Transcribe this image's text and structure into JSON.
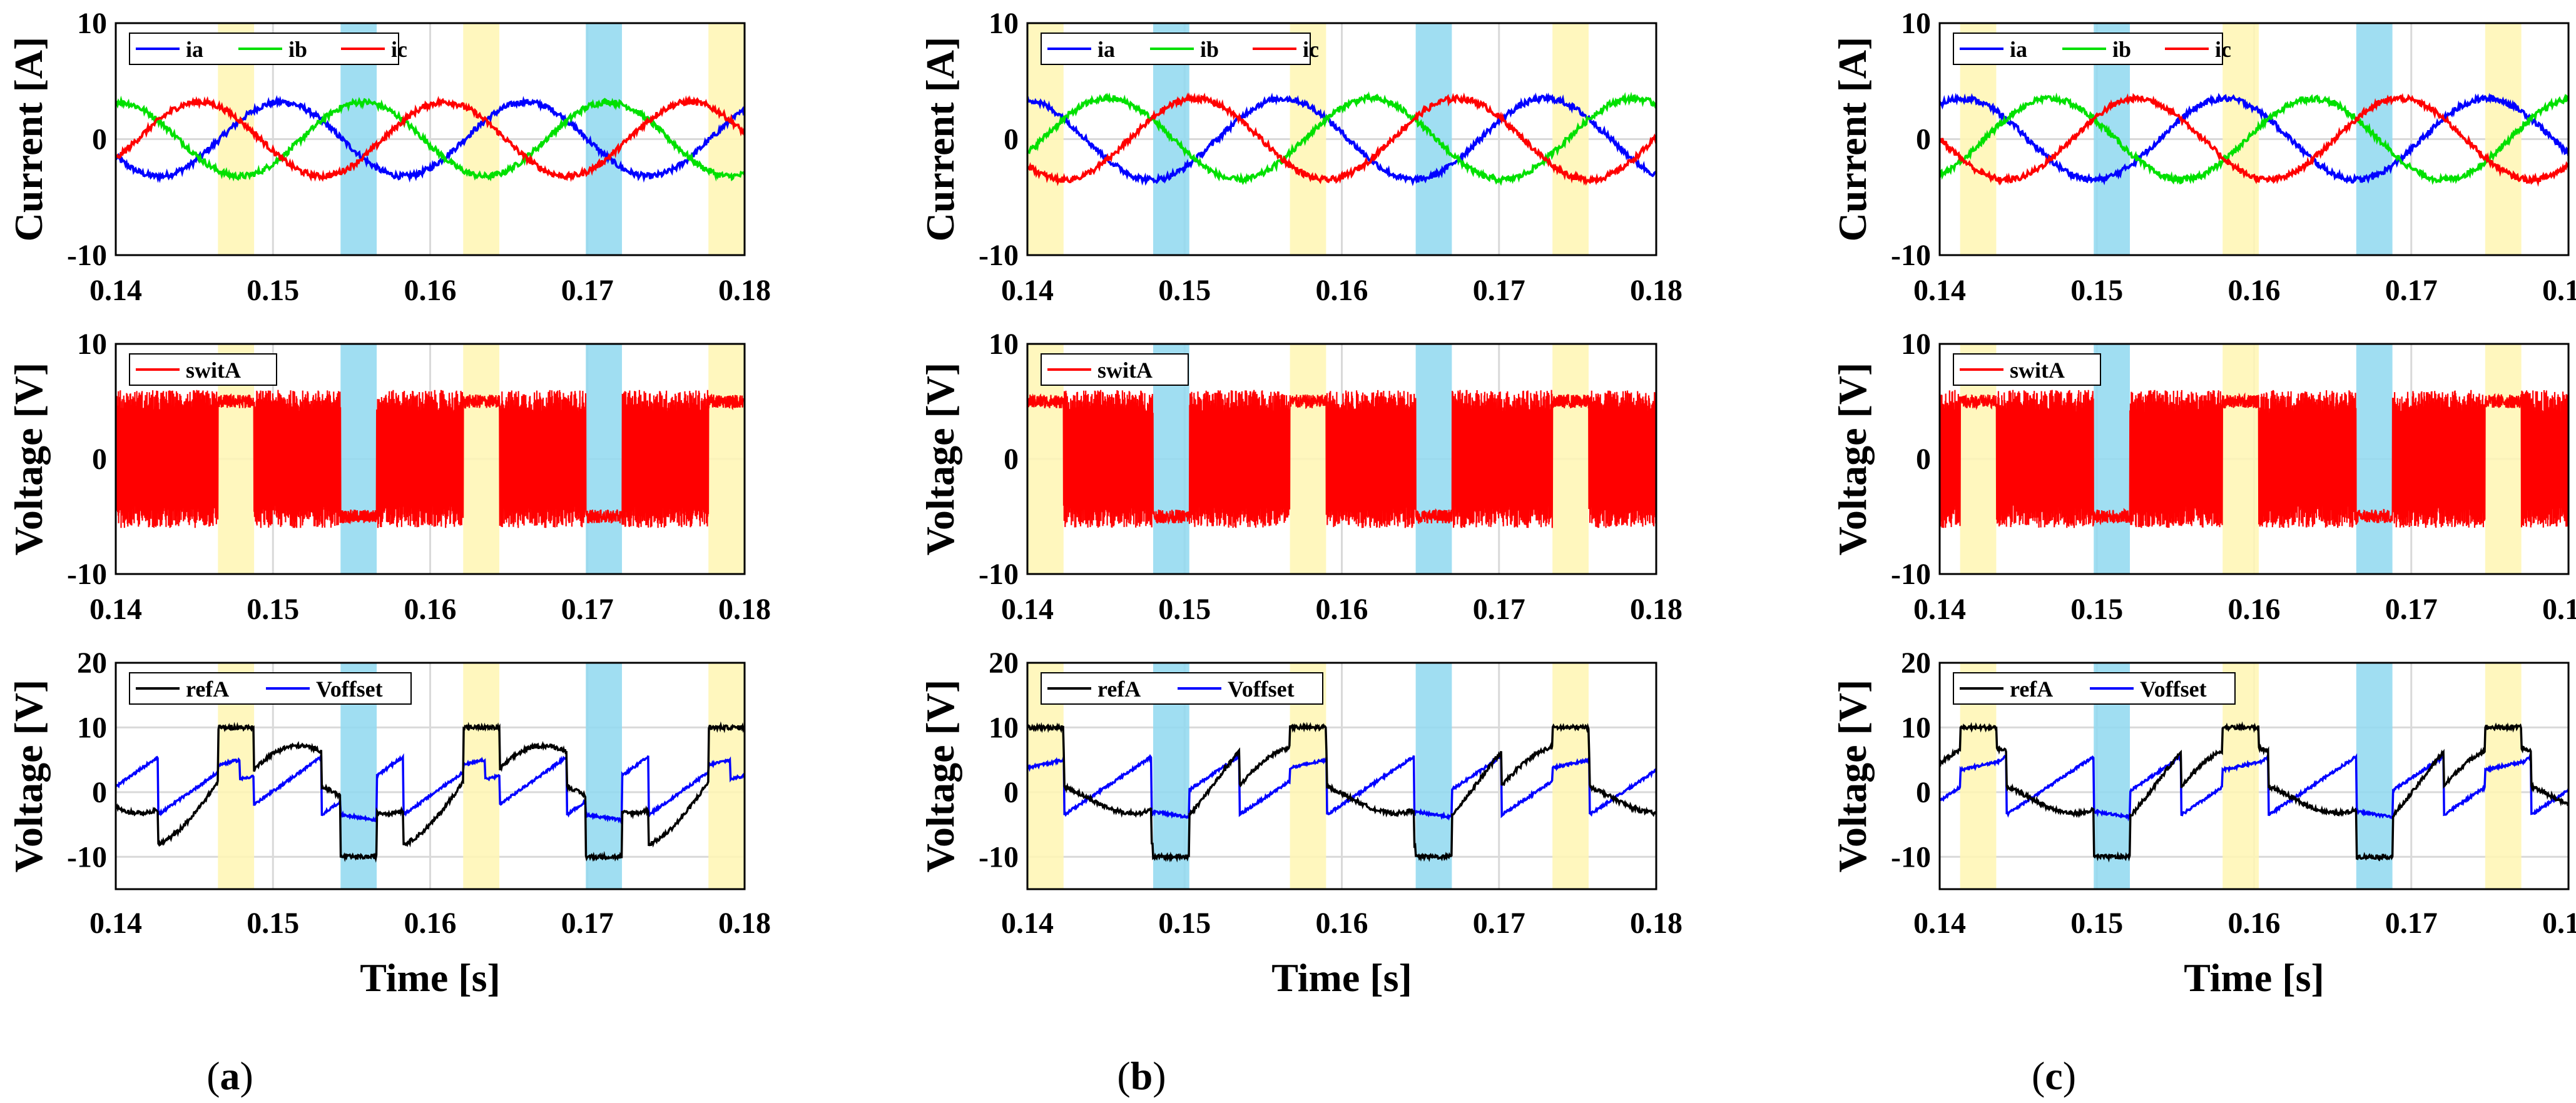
{
  "chart_data": {
    "type": "line",
    "layout": "3x3 grid of line plots",
    "colors": {
      "ia": "#0000ff",
      "ib": "#00e000",
      "ic": "#ff0000",
      "switA": "#ff0000",
      "refA": "#000000",
      "Voffset": "#0000ff",
      "yellow_band": "#fff6b3",
      "blue_band": "#8fd8f0"
    },
    "x_axis": {
      "label": "Time [s]",
      "xlim": [
        0.14,
        0.18
      ],
      "ticks": [
        0.14,
        0.15,
        0.16,
        0.17,
        0.18
      ],
      "tick_labels": [
        "0.14",
        "0.15",
        "0.16",
        "0.17",
        "0.18"
      ]
    },
    "rows": [
      {
        "id": "current",
        "ylabel": "Current [A]",
        "ylim": [
          -10,
          10
        ],
        "yticks": [
          -10,
          0,
          10
        ],
        "ytick_labels": [
          "-10",
          "0",
          "10"
        ],
        "legend": [
          "ia",
          "ib",
          "ic"
        ]
      },
      {
        "id": "switch",
        "ylabel": "Voltage [V]",
        "ylim": [
          -10,
          10
        ],
        "yticks": [
          -10,
          0,
          10
        ],
        "ytick_labels": [
          "-10",
          "0",
          "10"
        ],
        "legend": [
          "switA"
        ]
      },
      {
        "id": "ref",
        "ylabel": "Voltage [V]",
        "ylim": [
          -15,
          20
        ],
        "yticks": [
          -10,
          0,
          10,
          20
        ],
        "ytick_labels": [
          "-10",
          "0",
          "10",
          "20"
        ],
        "legend": [
          "refA",
          "Voffset"
        ]
      }
    ],
    "panels": [
      {
        "id": "a",
        "caption": "(a)",
        "period": 0.0156,
        "phase": 0.1427,
        "amplitude": 3.2,
        "yellow_bands": [
          [
            0.1465,
            0.1488
          ],
          [
            0.1621,
            0.1644
          ],
          [
            0.1777,
            0.18
          ]
        ],
        "blue_bands": [
          [
            0.1543,
            0.1566
          ],
          [
            0.1699,
            0.1722
          ]
        ]
      },
      {
        "id": "b",
        "caption": "(b)",
        "period": 0.0167,
        "phase": 0.1479,
        "amplitude": 3.5,
        "yellow_bands": [
          [
            0.14,
            0.1423
          ],
          [
            0.1567,
            0.159
          ],
          [
            0.1734,
            0.1757
          ]
        ],
        "blue_bands": [
          [
            0.148,
            0.1503
          ],
          [
            0.1647,
            0.167
          ]
        ]
      },
      {
        "id": "c",
        "caption": "(c)",
        "period": 0.0167,
        "phase": 0.1498,
        "amplitude": 3.5,
        "yellow_bands": [
          [
            0.1413,
            0.1436
          ],
          [
            0.158,
            0.1603
          ],
          [
            0.1747,
            0.177
          ]
        ],
        "blue_bands": [
          [
            0.1498,
            0.1521
          ],
          [
            0.1665,
            0.1688
          ]
        ]
      }
    ],
    "waveform_note": "Three-phase currents ia/ib/ic (about 3 A peak, 120 deg apart); switA toggles +/-5 V with noise and is clamped during colored bands; refA clamps at +10/-10 V; Voffset is the zero-sequence offset in blue."
  }
}
